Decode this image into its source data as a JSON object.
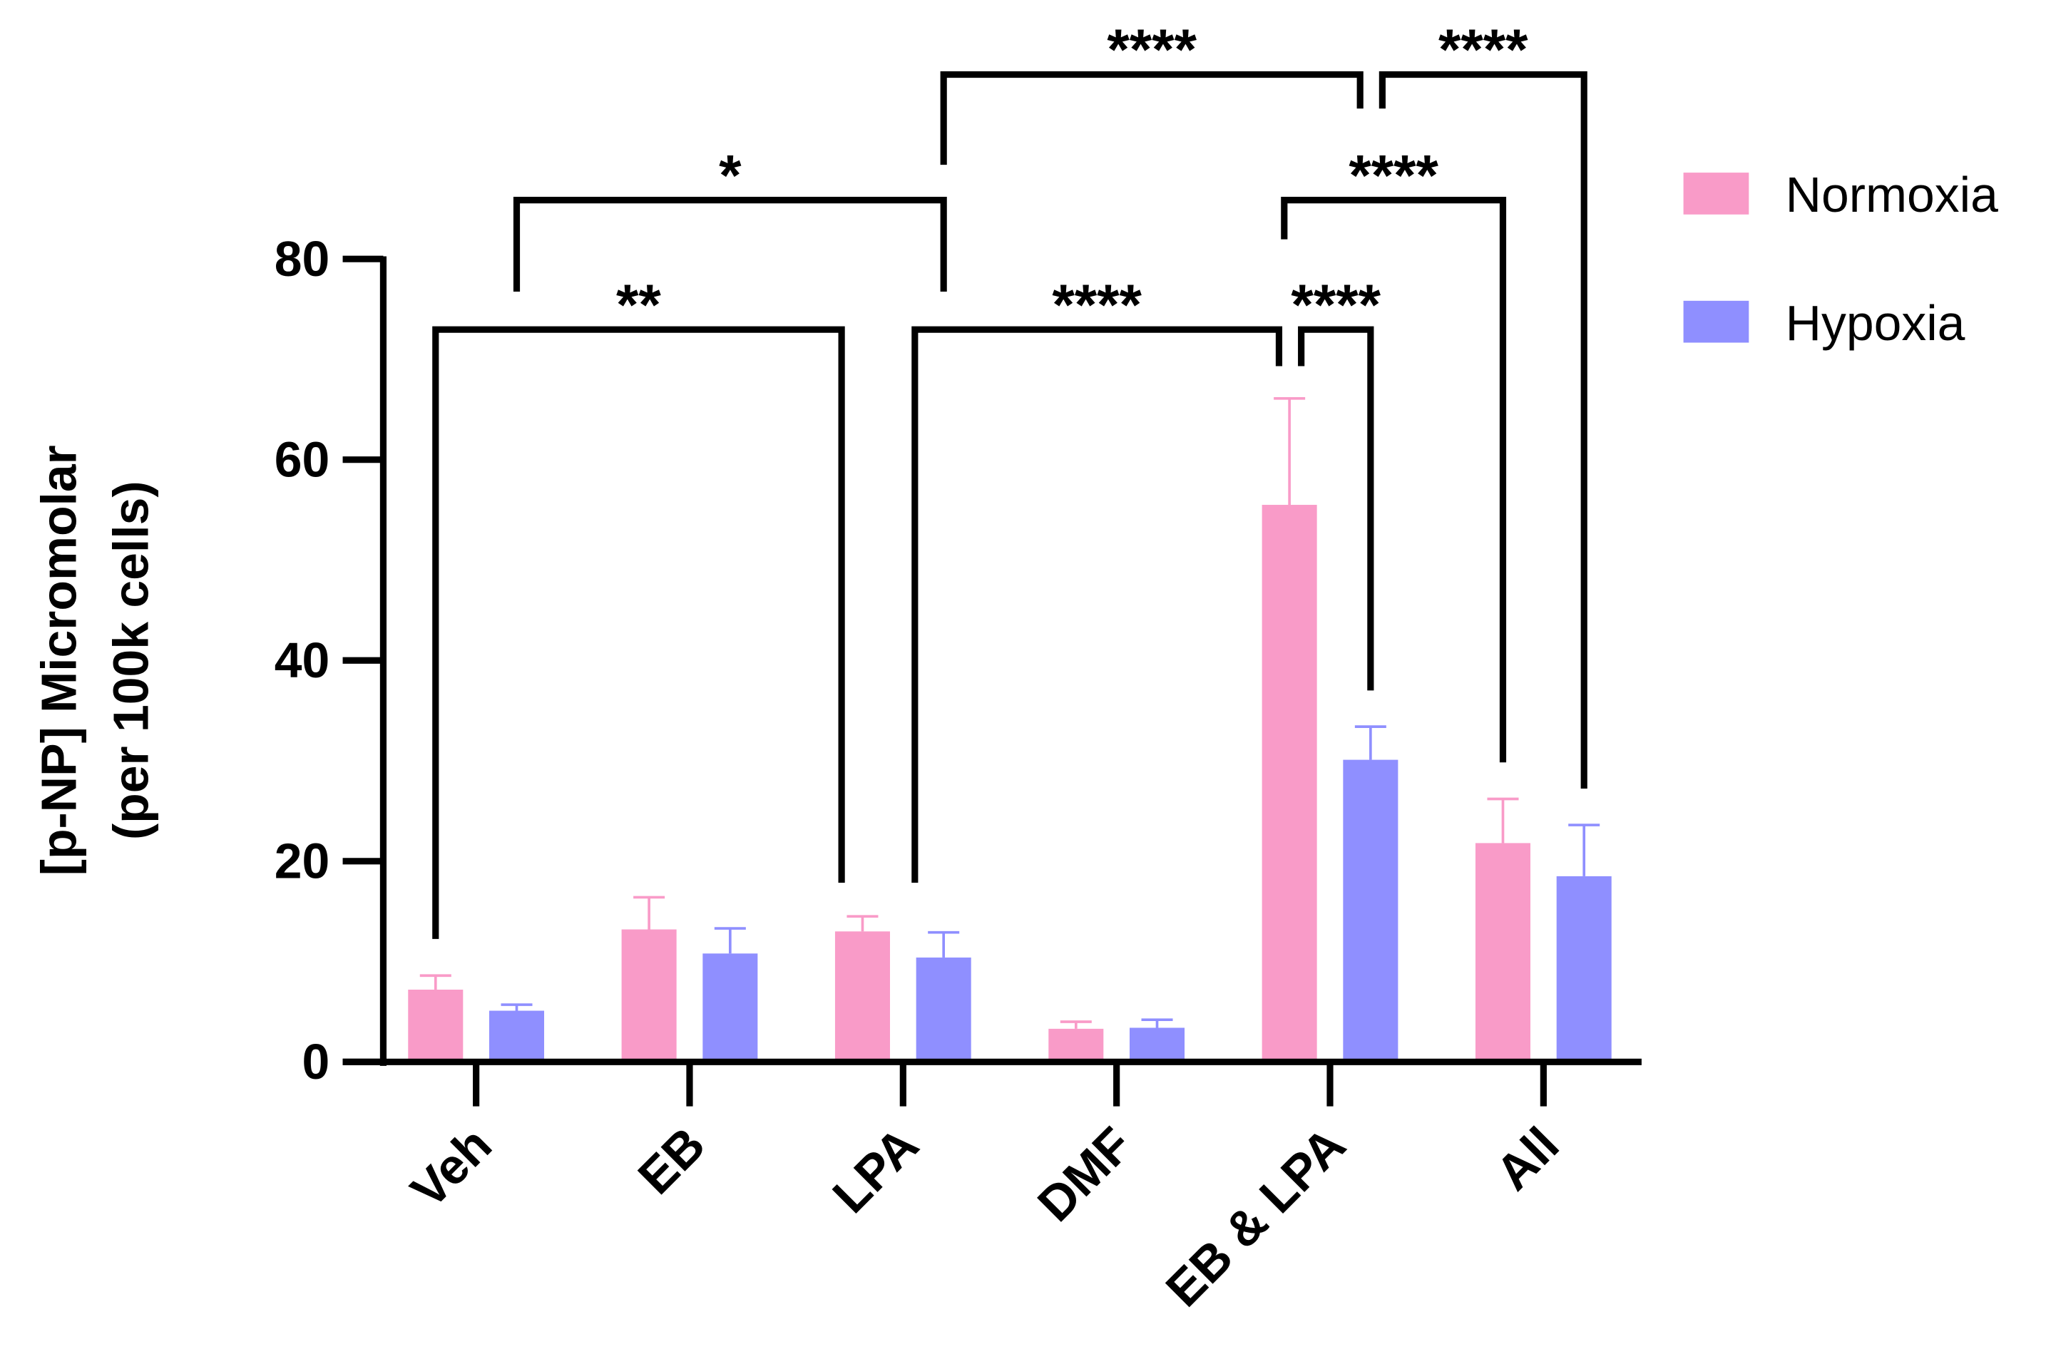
{
  "chart_data": {
    "type": "bar",
    "title": "",
    "xlabel": "",
    "ylabel_lines": [
      "[p-NP] Micromolar",
      "(per 100k cells)"
    ],
    "ylim": [
      0,
      80
    ],
    "yticks": [
      0,
      20,
      40,
      60,
      80
    ],
    "categories": [
      "Veh",
      "EB",
      "LPA",
      "DMF",
      "EB & LPA",
      "All"
    ],
    "series": [
      {
        "name": "Normoxia",
        "color": "#F99BC8",
        "values": [
          7.2,
          13.2,
          13.0,
          3.3,
          55.5,
          21.8
        ],
        "error_upper": [
          8.6,
          16.4,
          14.5,
          4.0,
          66.1,
          26.2
        ]
      },
      {
        "name": "Hypoxia",
        "color": "#8F8FFF",
        "values": [
          5.1,
          10.8,
          10.4,
          3.4,
          30.1,
          18.5
        ],
        "error_upper": [
          5.7,
          13.3,
          12.9,
          4.2,
          33.4,
          23.6
        ]
      }
    ],
    "legend_position": "top-right",
    "grid": false,
    "significance": [
      {
        "from": [
          0,
          0
        ],
        "to": [
          2,
          0
        ],
        "label": "**"
      },
      {
        "from": [
          2,
          1
        ],
        "to": [
          4,
          0
        ],
        "label": "****"
      },
      {
        "from": [
          4,
          0
        ],
        "to": [
          4,
          1
        ],
        "label": "****"
      },
      {
        "from": [
          0,
          1
        ],
        "to": [
          2,
          1
        ],
        "label": "*"
      },
      {
        "from": [
          2,
          1
        ],
        "to": [
          4,
          1
        ],
        "label": "****"
      },
      {
        "from": [
          4,
          1
        ],
        "to": [
          5,
          1
        ],
        "label": "****"
      },
      {
        "from": [
          4,
          0
        ],
        "to": [
          5,
          0
        ],
        "label": "****"
      }
    ]
  }
}
